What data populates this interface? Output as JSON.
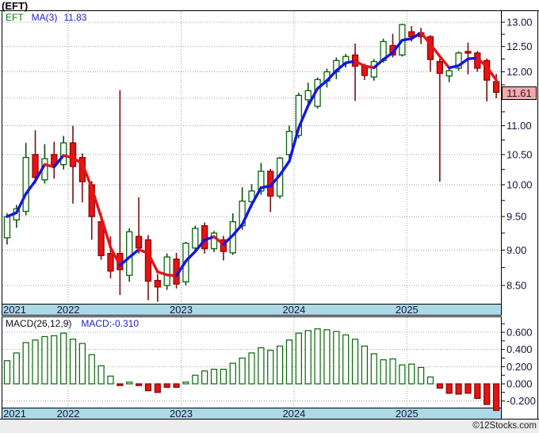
{
  "header": {
    "title": "(EFT)"
  },
  "main_chart": {
    "legend": {
      "symbol": "EFT",
      "ma_label": "MA(3)",
      "ma_value": "11.83"
    },
    "last_price_badge": "11.61",
    "y_axis_labels": [
      {
        "text": "13.00",
        "value": 13.0
      },
      {
        "text": "12.50",
        "value": 12.5
      },
      {
        "text": "12.00",
        "value": 12.0
      },
      {
        "text": "11.00",
        "value": 11.0
      },
      {
        "text": "10.50",
        "value": 10.5
      },
      {
        "text": "10.00",
        "value": 10.0
      },
      {
        "text": "9.50",
        "value": 9.5
      },
      {
        "text": "9.00",
        "value": 9.0
      },
      {
        "text": "8.50",
        "value": 8.5
      }
    ]
  },
  "macd_panel": {
    "indicator_label": "MACD(26,12,9)",
    "value_label": "MACD:-0.310",
    "y_axis_labels": [
      {
        "text": "0.600",
        "value": 0.6
      },
      {
        "text": "0.400",
        "value": 0.4
      },
      {
        "text": "0.200",
        "value": 0.2
      },
      {
        "text": "0.000",
        "value": 0.0
      },
      {
        "text": "-0.200",
        "value": -0.2
      }
    ]
  },
  "x_axis": {
    "years": [
      {
        "label": "2021",
        "jan_index": null
      },
      {
        "label": "2022",
        "jan_index": 7
      },
      {
        "label": "2023",
        "jan_index": 19
      },
      {
        "label": "2024",
        "jan_index": 31
      },
      {
        "label": "2025",
        "jan_index": 43
      }
    ]
  },
  "footer": {
    "credit": "©12Stocks.com"
  },
  "colors": {
    "up_stroke": "#056605",
    "up_fill": "#ffffff",
    "up_wick": "#0b4d0b",
    "down_fill": "#e51414",
    "down_stroke": "#990000",
    "down_wick": "#7a0f0f",
    "ma_rising": "#1414e6",
    "ma_falling": "#e61414",
    "axis_band": "#add8e6",
    "grid": "#a0a0a0",
    "axis_text": "#14143c",
    "frame": "#000000",
    "badge_bg": "#f8a8a8"
  },
  "chart_data": [
    {
      "type": "candlestick",
      "title": "EFT monthly price",
      "frequency": "monthly",
      "yscale": "log",
      "ylim": [
        8.25,
        13.15
      ],
      "yticks": [
        13.0,
        12.5,
        12.0,
        11.5,
        11.0,
        10.5,
        10.0,
        9.5,
        9.0,
        8.5
      ],
      "last_price": 11.61,
      "overlays": [
        {
          "name": "MA(3)",
          "derivation": "3-period simple moving average of close",
          "last_value": 11.83,
          "style": "blue when rising, red when falling"
        }
      ],
      "ohlc": [
        [
          9.18,
          9.55,
          9.08,
          9.5
        ],
        [
          9.45,
          9.68,
          9.33,
          9.62
        ],
        [
          9.58,
          10.7,
          9.52,
          10.45
        ],
        [
          10.5,
          10.92,
          10.02,
          10.12
        ],
        [
          10.08,
          10.68,
          10.02,
          10.43
        ],
        [
          10.5,
          10.72,
          10.1,
          10.33
        ],
        [
          10.33,
          10.82,
          10.25,
          10.7
        ],
        [
          10.7,
          11.0,
          9.7,
          10.3
        ],
        [
          10.45,
          10.52,
          9.72,
          10.05
        ],
        [
          10.0,
          10.06,
          9.15,
          9.5
        ],
        [
          9.42,
          9.56,
          8.86,
          8.92
        ],
        [
          8.95,
          9.2,
          8.6,
          8.7
        ],
        [
          8.95,
          11.65,
          8.37,
          8.72
        ],
        [
          8.64,
          9.32,
          8.55,
          9.27
        ],
        [
          9.2,
          9.8,
          8.95,
          9.03
        ],
        [
          9.15,
          9.22,
          8.3,
          8.56
        ],
        [
          8.57,
          8.66,
          8.28,
          8.48
        ],
        [
          8.5,
          8.95,
          8.44,
          8.9
        ],
        [
          8.87,
          8.96,
          8.46,
          8.52
        ],
        [
          8.55,
          9.12,
          8.5,
          9.1
        ],
        [
          9.03,
          9.36,
          8.99,
          9.32
        ],
        [
          9.36,
          9.41,
          8.95,
          9.02
        ],
        [
          9.02,
          9.28,
          8.97,
          9.25
        ],
        [
          9.15,
          9.21,
          8.85,
          8.98
        ],
        [
          8.96,
          9.55,
          8.93,
          9.42
        ],
        [
          9.36,
          9.96,
          9.3,
          9.74
        ],
        [
          9.73,
          10.01,
          9.64,
          9.9
        ],
        [
          9.9,
          10.36,
          9.84,
          10.22
        ],
        [
          10.22,
          10.26,
          9.57,
          9.82
        ],
        [
          9.82,
          10.46,
          9.78,
          10.44
        ],
        [
          10.5,
          11.0,
          10.44,
          10.9
        ],
        [
          10.83,
          11.6,
          10.78,
          11.55
        ],
        [
          11.47,
          11.79,
          11.4,
          11.64
        ],
        [
          11.35,
          11.89,
          11.31,
          11.85
        ],
        [
          11.82,
          12.06,
          11.7,
          12.0
        ],
        [
          12.0,
          12.28,
          11.86,
          12.22
        ],
        [
          12.17,
          12.35,
          12.08,
          12.3
        ],
        [
          12.33,
          12.56,
          11.45,
          12.11
        ],
        [
          12.1,
          12.16,
          11.84,
          11.93
        ],
        [
          11.9,
          12.25,
          11.83,
          12.2
        ],
        [
          12.22,
          12.66,
          12.18,
          12.6
        ],
        [
          12.52,
          12.76,
          12.28,
          12.33
        ],
        [
          12.33,
          12.97,
          12.3,
          12.95
        ],
        [
          12.8,
          12.92,
          12.6,
          12.7
        ],
        [
          12.78,
          12.88,
          12.55,
          12.7
        ],
        [
          12.7,
          12.73,
          12.0,
          12.24
        ],
        [
          12.2,
          12.26,
          10.05,
          11.97
        ],
        [
          11.92,
          12.06,
          11.8,
          12.02
        ],
        [
          12.07,
          12.4,
          12.02,
          12.37
        ],
        [
          12.4,
          12.58,
          11.95,
          12.37
        ],
        [
          12.37,
          12.41,
          12.0,
          12.07
        ],
        [
          12.22,
          12.26,
          11.44,
          11.84
        ],
        [
          11.81,
          11.96,
          11.5,
          11.61
        ]
      ]
    },
    {
      "type": "bar",
      "title": "MACD(26,12,9) histogram",
      "ylim": [
        -0.45,
        0.78
      ],
      "yticks": [
        0.6,
        0.4,
        0.2,
        0.0,
        -0.2
      ],
      "last_value": -0.31,
      "positive_style": "hollow green",
      "negative_style": "filled red",
      "values": [
        0.27,
        0.36,
        0.48,
        0.51,
        0.55,
        0.56,
        0.59,
        0.52,
        0.47,
        0.34,
        0.21,
        0.09,
        -0.02,
        0.02,
        -0.02,
        -0.08,
        -0.1,
        -0.04,
        -0.04,
        0.02,
        0.1,
        0.15,
        0.17,
        0.17,
        0.24,
        0.3,
        0.36,
        0.42,
        0.39,
        0.44,
        0.51,
        0.59,
        0.62,
        0.64,
        0.63,
        0.61,
        0.57,
        0.52,
        0.44,
        0.35,
        0.28,
        0.29,
        0.22,
        0.23,
        0.19,
        0.08,
        -0.05,
        -0.11,
        -0.12,
        -0.11,
        -0.17,
        -0.24,
        -0.31
      ]
    }
  ]
}
